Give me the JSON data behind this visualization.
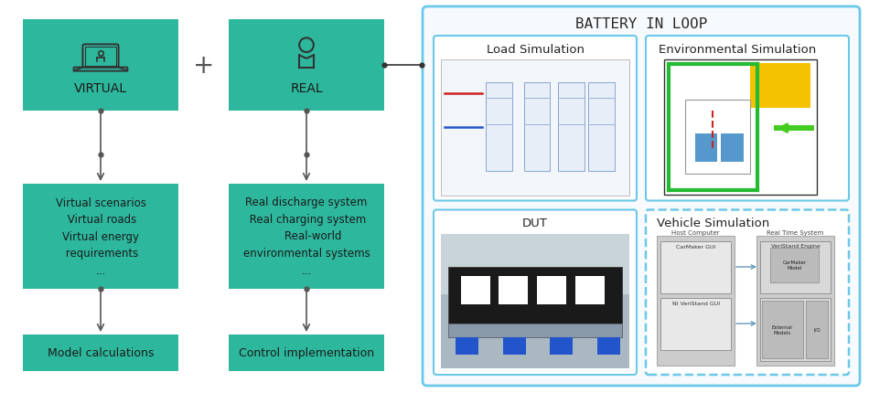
{
  "bg_color": "#ffffff",
  "teal_color": "#2db89e",
  "blue_border": "#6cc8e8",
  "text_dark": "#333333",
  "plus_sign": "+",
  "virtual_label": "VIRTUAL",
  "real_label": "REAL",
  "virtual_box_text": "Virtual scenarios\nVirtual roads\nVirtual energy\nrequirements\n...",
  "real_box_text": "Real discharge system\nReal charging system\nReal-world\nenvironmental systems\n...",
  "model_calc_text": "Model calculations",
  "control_impl_text": "Control implementation",
  "battery_in_loop": "BATTERY IN LOOP",
  "load_sim_label": "Load Simulation",
  "env_sim_label": "Environmental Simulation",
  "dut_label": "DUT",
  "vehicle_sim_label": "Vehicle Simulation",
  "figw": 9.5,
  "figh": 4.31,
  "dpi": 100
}
